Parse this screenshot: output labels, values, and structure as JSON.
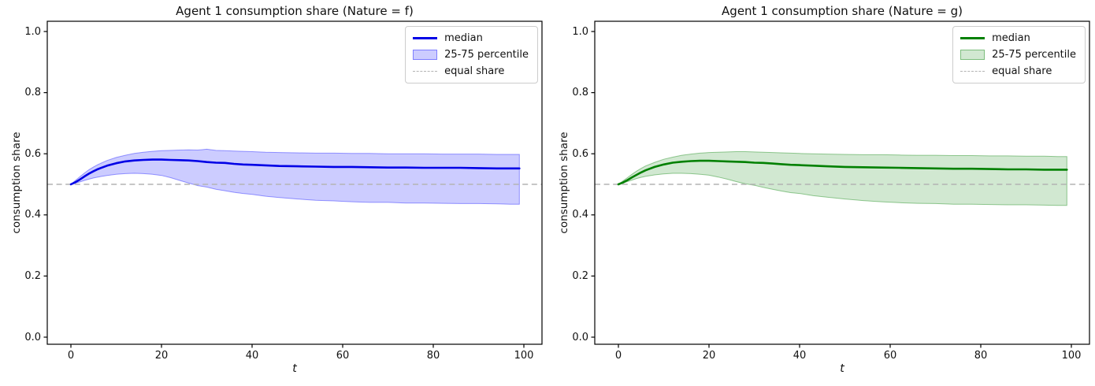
{
  "figure": {
    "background": "#ffffff"
  },
  "chart_data": [
    {
      "type": "line",
      "title": "Agent 1 consumption share (Nature = f)",
      "xlabel": "t",
      "ylabel": "consumption share",
      "xticks": [
        0,
        20,
        40,
        60,
        80,
        100
      ],
      "yticks": [
        0.0,
        0.2,
        0.4,
        0.6,
        0.8,
        1.0
      ],
      "xlim": [
        -5,
        105
      ],
      "ylim": [
        -0.02,
        1.03
      ],
      "equal_share_value": 0.5,
      "grid": false,
      "legend": {
        "position": "upper right",
        "entries": [
          {
            "label": "median",
            "type": "line"
          },
          {
            "label": "25-75 percentile",
            "type": "patch"
          },
          {
            "label": "equal share",
            "type": "dashed"
          }
        ]
      },
      "colors": {
        "median": "#0000e6",
        "band_fill": "rgba(0,0,255,0.2)",
        "band_edge": "rgba(0,0,255,0.38)",
        "equal_share_line": "#b3b3b3"
      },
      "x": [
        0,
        1,
        2,
        3,
        4,
        5,
        6,
        8,
        10,
        12,
        14,
        16,
        18,
        20,
        22,
        24,
        26,
        28,
        30,
        32,
        34,
        36,
        38,
        40,
        43,
        46,
        50,
        54,
        58,
        62,
        66,
        70,
        74,
        78,
        82,
        86,
        90,
        94,
        97,
        99
      ],
      "series": [
        {
          "name": "median",
          "values": [
            0.5,
            0.507,
            0.516,
            0.526,
            0.535,
            0.543,
            0.55,
            0.561,
            0.569,
            0.575,
            0.578,
            0.58,
            0.581,
            0.581,
            0.58,
            0.579,
            0.578,
            0.576,
            0.573,
            0.571,
            0.57,
            0.567,
            0.565,
            0.564,
            0.562,
            0.56,
            0.559,
            0.558,
            0.557,
            0.557,
            0.556,
            0.555,
            0.555,
            0.554,
            0.554,
            0.554,
            0.553,
            0.552,
            0.552,
            0.552
          ]
        },
        {
          "name": "p75",
          "values": [
            0.5,
            0.513,
            0.525,
            0.537,
            0.548,
            0.557,
            0.565,
            0.578,
            0.588,
            0.595,
            0.601,
            0.605,
            0.608,
            0.61,
            0.611,
            0.612,
            0.613,
            0.612,
            0.615,
            0.611,
            0.61,
            0.609,
            0.608,
            0.607,
            0.605,
            0.604,
            0.603,
            0.602,
            0.602,
            0.601,
            0.601,
            0.6,
            0.6,
            0.6,
            0.599,
            0.599,
            0.599,
            0.598,
            0.598,
            0.598
          ]
        },
        {
          "name": "p25",
          "values": [
            0.5,
            0.504,
            0.508,
            0.513,
            0.517,
            0.521,
            0.524,
            0.529,
            0.533,
            0.535,
            0.536,
            0.535,
            0.533,
            0.529,
            0.522,
            0.513,
            0.504,
            0.496,
            0.491,
            0.484,
            0.479,
            0.474,
            0.47,
            0.467,
            0.461,
            0.457,
            0.452,
            0.448,
            0.446,
            0.443,
            0.441,
            0.441,
            0.439,
            0.439,
            0.438,
            0.437,
            0.437,
            0.436,
            0.435,
            0.435
          ]
        }
      ]
    },
    {
      "type": "line",
      "title": "Agent 1 consumption share (Nature = g)",
      "xlabel": "t",
      "ylabel": "consumption share",
      "xticks": [
        0,
        20,
        40,
        60,
        80,
        100
      ],
      "yticks": [
        0.0,
        0.2,
        0.4,
        0.6,
        0.8,
        1.0
      ],
      "xlim": [
        -5,
        105
      ],
      "ylim": [
        -0.02,
        1.03
      ],
      "equal_share_value": 0.5,
      "grid": false,
      "legend": {
        "position": "upper right",
        "entries": [
          {
            "label": "median",
            "type": "line"
          },
          {
            "label": "25-75 percentile",
            "type": "patch"
          },
          {
            "label": "equal share",
            "type": "dashed"
          }
        ]
      },
      "colors": {
        "median": "#008000",
        "band_fill": "rgba(0,128,0,0.18)",
        "band_edge": "rgba(0,128,0,0.4)",
        "equal_share_line": "#b3b3b3"
      },
      "x": [
        0,
        1,
        2,
        3,
        4,
        5,
        6,
        8,
        10,
        12,
        14,
        16,
        18,
        20,
        22,
        24,
        26,
        28,
        30,
        32,
        34,
        36,
        38,
        40,
        43,
        46,
        50,
        54,
        58,
        62,
        66,
        70,
        74,
        78,
        82,
        86,
        90,
        94,
        97,
        99
      ],
      "series": [
        {
          "name": "median",
          "values": [
            0.5,
            0.506,
            0.514,
            0.523,
            0.531,
            0.539,
            0.546,
            0.557,
            0.565,
            0.571,
            0.574,
            0.576,
            0.577,
            0.577,
            0.576,
            0.575,
            0.574,
            0.573,
            0.571,
            0.57,
            0.568,
            0.566,
            0.564,
            0.563,
            0.561,
            0.559,
            0.557,
            0.556,
            0.555,
            0.554,
            0.553,
            0.552,
            0.551,
            0.551,
            0.55,
            0.549,
            0.549,
            0.548,
            0.548,
            0.548
          ]
        },
        {
          "name": "p75",
          "values": [
            0.5,
            0.511,
            0.522,
            0.533,
            0.543,
            0.552,
            0.56,
            0.572,
            0.582,
            0.589,
            0.595,
            0.599,
            0.602,
            0.604,
            0.605,
            0.606,
            0.607,
            0.607,
            0.606,
            0.605,
            0.604,
            0.603,
            0.602,
            0.601,
            0.6,
            0.599,
            0.598,
            0.597,
            0.597,
            0.596,
            0.595,
            0.595,
            0.594,
            0.594,
            0.593,
            0.593,
            0.592,
            0.592,
            0.591,
            0.591
          ]
        },
        {
          "name": "p25",
          "values": [
            0.5,
            0.504,
            0.509,
            0.514,
            0.519,
            0.523,
            0.526,
            0.531,
            0.534,
            0.536,
            0.536,
            0.535,
            0.533,
            0.53,
            0.524,
            0.517,
            0.509,
            0.502,
            0.497,
            0.49,
            0.484,
            0.478,
            0.473,
            0.47,
            0.463,
            0.458,
            0.452,
            0.447,
            0.443,
            0.44,
            0.438,
            0.437,
            0.435,
            0.435,
            0.434,
            0.433,
            0.433,
            0.432,
            0.431,
            0.431
          ]
        }
      ]
    }
  ]
}
